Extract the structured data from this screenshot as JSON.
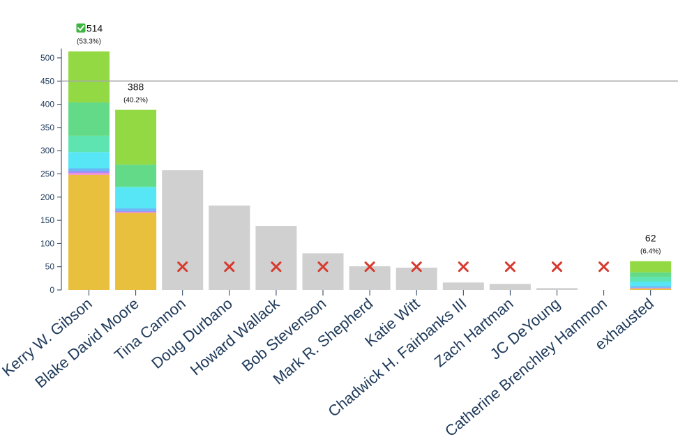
{
  "chart_data": {
    "type": "bar",
    "stacked": true,
    "ylim": [
      0,
      520
    ],
    "yticks": [
      0,
      50,
      100,
      150,
      200,
      250,
      300,
      350,
      400,
      450,
      500
    ],
    "threshold": 450,
    "colors": {
      "eliminated": "#d0d0d0",
      "cross": "#d73a2e",
      "check_bg": "#3fb43f",
      "axis": "#1f3a5a",
      "threshold_line": "#a8a8a8",
      "round_1": "#e9bf3e",
      "round_2": "#f18bd3",
      "round_3": "#a88cf3",
      "round_4": "#6ab7f7",
      "round_5": "#57e6f5",
      "round_6": "#5ee4b0",
      "round_7": "#63da87",
      "round_8": "#93d944"
    },
    "candidates": [
      {
        "name": "Kerry W. Gibson",
        "total": "514",
        "percent": "(53.3%)",
        "winner": true,
        "eliminated": false,
        "segments": [
          248,
          4,
          4,
          6,
          35,
          35,
          72,
          110
        ]
      },
      {
        "name": "Blake David Moore",
        "total": "388",
        "percent": "(40.2%)",
        "winner": false,
        "eliminated": false,
        "segments": [
          166,
          2,
          2,
          6,
          45,
          2,
          47,
          118
        ]
      },
      {
        "name": "Tina Cannon",
        "value": 258,
        "eliminated": true
      },
      {
        "name": "Doug Durbano",
        "value": 182,
        "eliminated": true
      },
      {
        "name": "Howard Wallack",
        "value": 138,
        "eliminated": true
      },
      {
        "name": "Bob Stevenson",
        "value": 79,
        "eliminated": true
      },
      {
        "name": "Mark R. Shepherd",
        "value": 51,
        "eliminated": true
      },
      {
        "name": "Katie Witt",
        "value": 48,
        "eliminated": true
      },
      {
        "name": "Chadwick H. Fairbanks III",
        "value": 16,
        "eliminated": true
      },
      {
        "name": "Zach Hartman",
        "value": 13,
        "eliminated": true
      },
      {
        "name": "JC DeYoung",
        "value": 4,
        "eliminated": true
      },
      {
        "name": "Catherine Brenchley Hammon",
        "value": 0,
        "eliminated": true
      },
      {
        "name": "exhausted",
        "total": "62",
        "percent": "(6.4%)",
        "winner": false,
        "eliminated": false,
        "segments": [
          3,
          1,
          1,
          3,
          10,
          10,
          10,
          24
        ]
      }
    ]
  }
}
